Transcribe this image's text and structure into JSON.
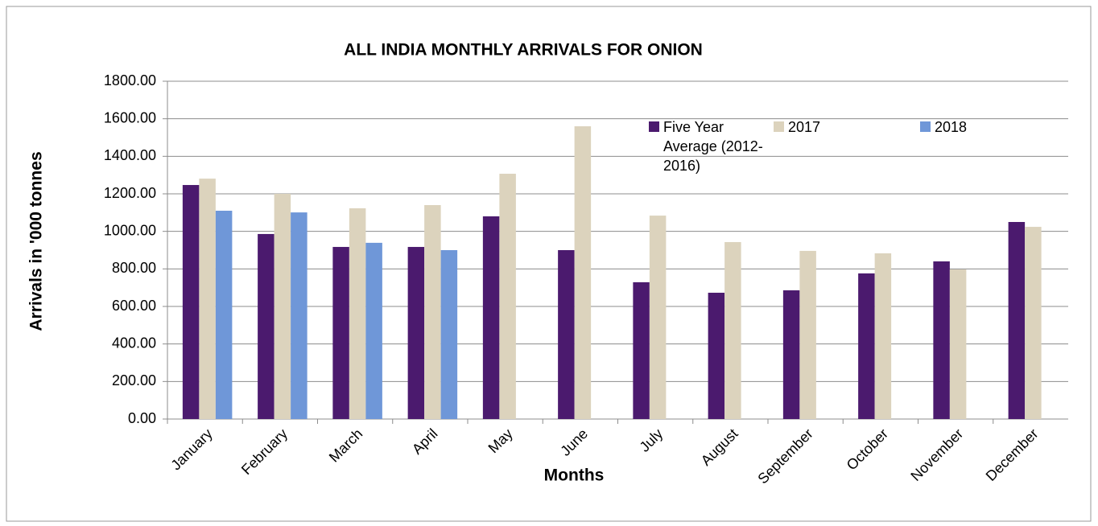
{
  "chart_data": {
    "type": "bar",
    "title": "ALL INDIA MONTHLY ARRIVALS FOR ONION",
    "x_label": "Months",
    "y_label": "Arrivals in '000 tonnes",
    "categories": [
      "January",
      "February",
      "March",
      "April",
      "May",
      "June",
      "July",
      "August",
      "September",
      "October",
      "November",
      "December"
    ],
    "series": [
      {
        "name": "Five Year Average (2012-2016)",
        "color": "#4b1a6e",
        "values": [
          1247,
          986,
          917,
          917,
          1080,
          900,
          729,
          673,
          686,
          776,
          840,
          1050
        ]
      },
      {
        "name": "2017",
        "color": "#dcd3bd",
        "values": [
          1281,
          1200,
          1123,
          1140,
          1307,
          1560,
          1084,
          943,
          896,
          883,
          797,
          1024
        ]
      },
      {
        "name": "2018",
        "color": "#6f97d8",
        "values": [
          1110,
          1101,
          939,
          900,
          null,
          null,
          null,
          null,
          null,
          null,
          null,
          null
        ]
      }
    ],
    "ylim": [
      0,
      1800
    ],
    "yticks": [
      {
        "value": 0,
        "label": "0.00"
      },
      {
        "value": 200,
        "label": "200.00"
      },
      {
        "value": 400,
        "label": "400.00"
      },
      {
        "value": 600,
        "label": "600.00"
      },
      {
        "value": 800,
        "label": "800.00"
      },
      {
        "value": 1000,
        "label": "1000.00"
      },
      {
        "value": 1200,
        "label": "1200.00"
      },
      {
        "value": 1400,
        "label": "1400.00"
      },
      {
        "value": 1600,
        "label": "1600.00"
      },
      {
        "value": 1800,
        "label": "1800.00"
      }
    ],
    "grid": true
  }
}
